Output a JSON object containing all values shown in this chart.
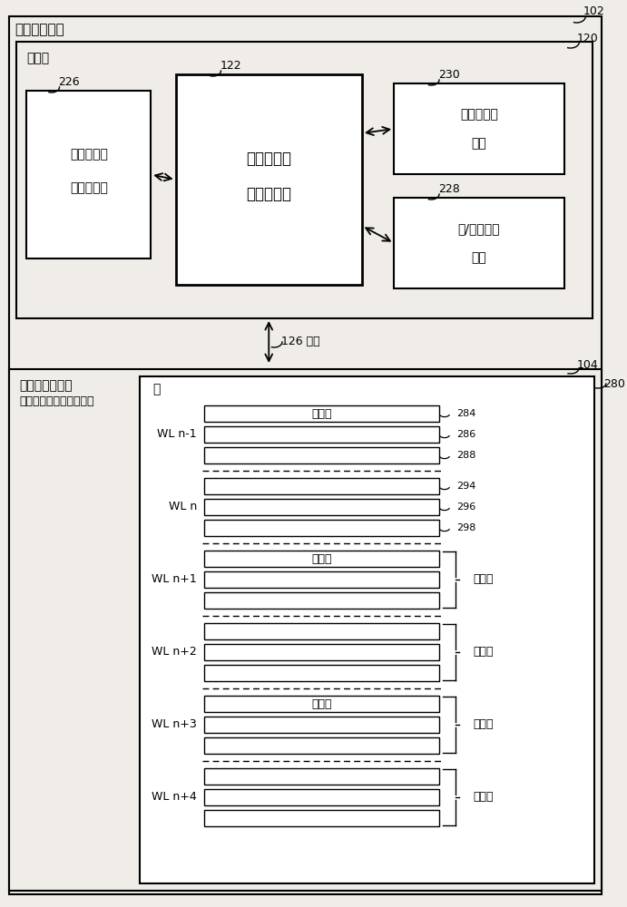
{
  "bg_color": "#f0ede8",
  "white": "#ffffff",
  "black": "#000000",
  "fig_label": "102",
  "outer_box_label": "数据存储设备",
  "controller_box_label": "控制器",
  "controller_box_ref": "120",
  "center_box_label1": "每存储元件",
  "center_box_label2": "位选择引擎",
  "center_box_ref": "122",
  "left_box_label1": "每存储元件",
  "left_box_label2": "位存储机制",
  "left_box_ref": "226",
  "top_right_box_label1": "适应性跟踪",
  "top_right_box_label2": "引擎",
  "top_right_box_ref": "230",
  "bot_right_box_label1": "块/字线跟踪",
  "bot_right_box_label2": "引擎",
  "bot_right_box_ref": "228",
  "bus_label": "126 总线",
  "nvm_box_label": "非易失性存储器",
  "nvm_box_sublabel": "（例如每单元多位快闪）",
  "nvm_box_ref": "104",
  "block_label": "块",
  "inner_block_ref": "280",
  "dummy_data_label": "虚数据",
  "logical_page_label": "逻辑页",
  "wl_groups": [
    {
      "label": "WL n-1",
      "rows": [
        "虚数据",
        "",
        ""
      ],
      "refs": [
        "284",
        "286",
        "288"
      ],
      "brace": false,
      "dashed_after": true
    },
    {
      "label": "WL n",
      "rows": [
        "",
        "",
        ""
      ],
      "refs": [
        "294",
        "296",
        "298"
      ],
      "brace": false,
      "dashed_after": true
    },
    {
      "label": "WL n+1",
      "rows": [
        "虚数据",
        "",
        ""
      ],
      "refs": [],
      "brace": true,
      "dashed_after": true
    },
    {
      "label": "WL n+2",
      "rows": [
        "",
        "",
        ""
      ],
      "refs": [],
      "brace": true,
      "dashed_after": true
    },
    {
      "label": "WL n+3",
      "rows": [
        "虚数据",
        "",
        ""
      ],
      "refs": [],
      "brace": true,
      "dashed_after": true
    },
    {
      "label": "WL n+4",
      "rows": [
        "",
        "",
        ""
      ],
      "refs": [],
      "brace": true,
      "dashed_after": false
    }
  ]
}
